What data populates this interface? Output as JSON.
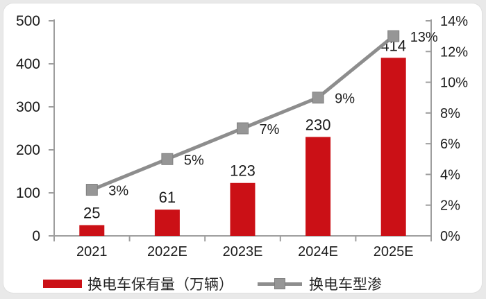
{
  "colors": {
    "bar": "#cb1016",
    "line": "#8d8d8d",
    "marker_fill": "#969696",
    "marker_stroke": "#7e7e7e",
    "axis": "#9e9e9e",
    "text": "#1b1b1b"
  },
  "chart_data": {
    "type": "bar+line",
    "categories": [
      "2021",
      "2022E",
      "2023E",
      "2024E",
      "2025E"
    ],
    "series": [
      {
        "name": "换电车保有量（万辆）",
        "type": "bar",
        "axis": "left",
        "values": [
          25,
          61,
          123,
          230,
          414
        ],
        "data_labels": [
          "25",
          "61",
          "123",
          "230",
          "414"
        ],
        "color": "#cb1016"
      },
      {
        "name": "换电车型渗",
        "type": "line",
        "axis": "right",
        "values": [
          3,
          5,
          7,
          9,
          13
        ],
        "data_labels": [
          "3%",
          "5%",
          "7%",
          "9%",
          "13%"
        ],
        "color": "#8d8d8d"
      }
    ],
    "left_axis": {
      "ticks": [
        "0",
        "100",
        "200",
        "300",
        "400",
        "500"
      ],
      "min": 0,
      "max": 500
    },
    "right_axis": {
      "ticks": [
        "0%",
        "2%",
        "4%",
        "6%",
        "8%",
        "10%",
        "12%",
        "14%"
      ],
      "min": 0,
      "max": 14
    },
    "title": "",
    "grid": false,
    "legend_position": "bottom"
  }
}
